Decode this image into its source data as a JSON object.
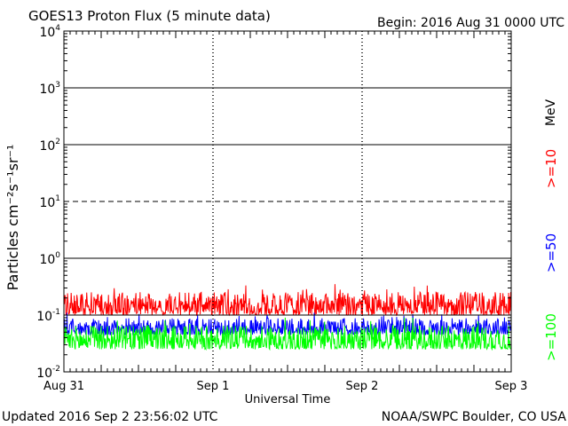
{
  "header": {
    "title": "GOES13 Proton Flux (5 minute data)",
    "begin": "Begin: 2016 Aug 31 0000 UTC"
  },
  "footer": {
    "updated": "Updated 2016 Sep  2 23:56:02 UTC",
    "credit": "NOAA/SWPC Boulder, CO USA"
  },
  "chart_data": {
    "type": "line",
    "title": "GOES13 Proton Flux (5 minute data)",
    "xlabel": "Universal Time",
    "ylabel": "Particles cm⁻²s⁻¹sr⁻¹",
    "y_scale": "log",
    "ylim": [
      0.01,
      10000
    ],
    "xlim": [
      "2016-08-31",
      "2016-09-03"
    ],
    "x_tick_labels": [
      "Aug 31",
      "Sep 1",
      "Sep 2",
      "Sep 3"
    ],
    "y_tick_labels": [
      {
        "base": "10",
        "exp": "-2"
      },
      {
        "base": "10",
        "exp": "-1"
      },
      {
        "base": "10",
        "exp": "0"
      },
      {
        "base": "10",
        "exp": "1"
      },
      {
        "base": "10",
        "exp": "2"
      },
      {
        "base": "10",
        "exp": "3"
      },
      {
        "base": "10",
        "exp": "4"
      }
    ],
    "threshold_lines": {
      "solid": [
        0.1,
        1,
        100,
        1000
      ],
      "dashed": [
        10
      ]
    },
    "series": [
      {
        "name": ">=10",
        "color": "#ff0000",
        "level_range": [
          0.1,
          0.35
        ]
      },
      {
        "name": ">=50",
        "color": "#0000ff",
        "level_range": [
          0.045,
          0.11
        ]
      },
      {
        "name": ">=100",
        "color": "#00ff00",
        "level_range": [
          0.025,
          0.09
        ]
      }
    ],
    "unit_label": "MeV"
  }
}
